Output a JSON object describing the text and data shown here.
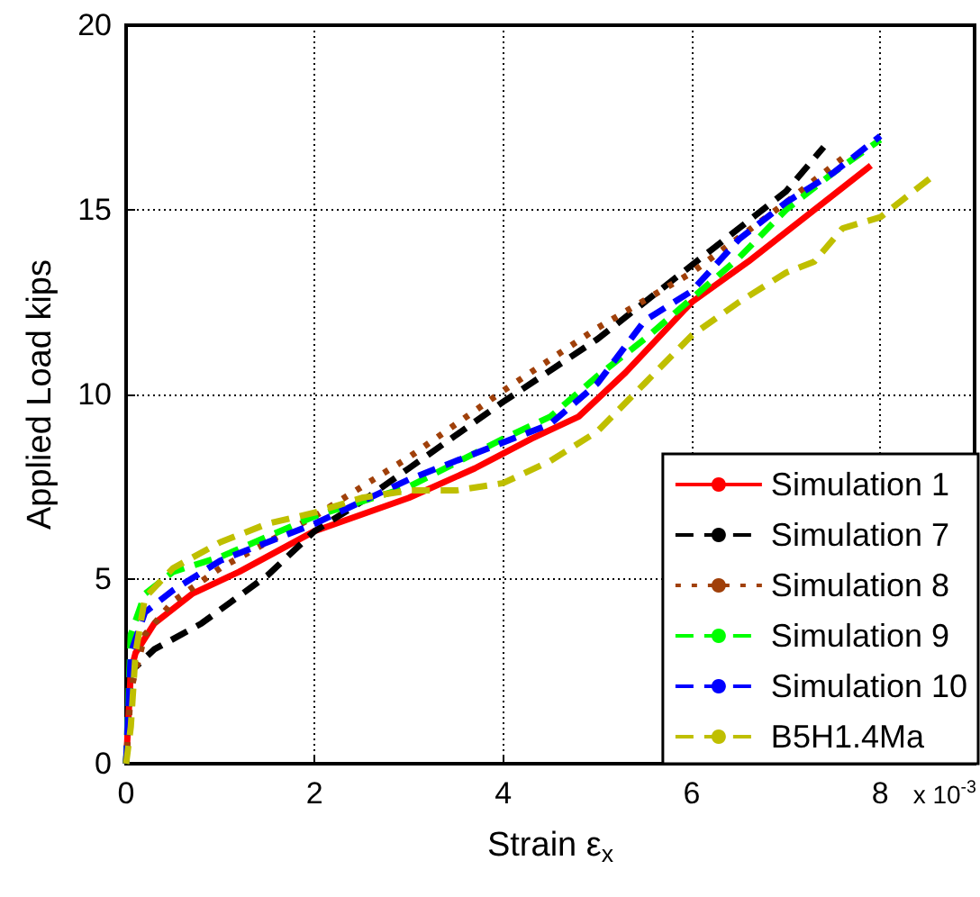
{
  "chart_data": {
    "type": "line",
    "xlabel": "Strain ε$_{x}$",
    "ylabel": "Applied Load kips",
    "annotations": [
      "x 10$^{-3}$"
    ],
    "xlim": [
      0,
      9
    ],
    "xticks": [
      0,
      2,
      4,
      6,
      8
    ],
    "ylim": [
      0,
      20
    ],
    "yticks": [
      0,
      5,
      10,
      15,
      20
    ],
    "grid": true,
    "legend": "bottom right",
    "marker": "none",
    "series": [
      {
        "name": "Simulation 1",
        "color": "#ff0000",
        "line_style": "solid",
        "x": [
          0,
          0.05,
          0.1,
          0.3,
          0.7,
          1.2,
          2,
          3,
          3.7,
          4.3,
          4.8,
          5.3,
          6,
          6.6,
          7.3,
          7.9
        ],
        "values": [
          0,
          2.5,
          3,
          3.8,
          4.6,
          5.2,
          6.3,
          7.2,
          8,
          8.8,
          9.4,
          10.6,
          12.5,
          13.6,
          15,
          16.2
        ]
      },
      {
        "name": "Simulation 7",
        "color": "#000000",
        "line_style": "dashed",
        "x": [
          0,
          0.05,
          0.3,
          0.8,
          1.5,
          2,
          2.5,
          3,
          4,
          5,
          6,
          7,
          7.4
        ],
        "values": [
          0,
          2.5,
          3.1,
          3.8,
          5.1,
          6.3,
          7.1,
          8,
          9.8,
          11.5,
          13.5,
          15.5,
          16.7
        ]
      },
      {
        "name": "Simulation 8",
        "color": "#a0400a",
        "line_style": "dotted",
        "x": [
          0,
          0.05,
          0.2,
          0.5,
          1,
          1.5,
          2,
          3,
          4,
          5,
          6,
          7,
          7.6
        ],
        "values": [
          0,
          2,
          3.5,
          4.4,
          5.3,
          6,
          6.7,
          8.3,
          10.1,
          11.8,
          13.3,
          15.2,
          16.4
        ]
      },
      {
        "name": "Simulation 9",
        "color": "#00ff00",
        "line_style": "dashed",
        "x": [
          0,
          0.05,
          0.2,
          0.5,
          1,
          2,
          3,
          4,
          4.5,
          5,
          5.5,
          6,
          6.5,
          7,
          7.5,
          8
        ],
        "values": [
          0,
          3.5,
          4.6,
          5.2,
          5.6,
          6.7,
          7.5,
          8.8,
          9.4,
          10.5,
          11.5,
          12.6,
          13.7,
          15,
          16,
          16.9
        ]
      },
      {
        "name": "Simulation 10",
        "color": "#0000ff",
        "line_style": "dashed",
        "x": [
          0,
          0.05,
          0.2,
          0.5,
          1,
          2,
          3,
          4,
          4.5,
          5,
          5.5,
          6,
          6.5,
          7,
          7.5,
          8
        ],
        "values": [
          0,
          3,
          4.1,
          4.7,
          5.5,
          6.5,
          7.7,
          8.7,
          9.2,
          10.3,
          12,
          12.8,
          14.2,
          15.2,
          16,
          17
        ]
      },
      {
        "name": "B5H1.4Ma",
        "color": "#bfbf00",
        "line_style": "dashed",
        "x": [
          0,
          0.05,
          0.1,
          0.2,
          0.5,
          1,
          1.5,
          2,
          2.5,
          3,
          3.5,
          4,
          4.5,
          5,
          5.5,
          6,
          6.5,
          7,
          7.3,
          7.6,
          8,
          8.6
        ],
        "values": [
          0,
          1,
          3,
          4.5,
          5.3,
          6,
          6.5,
          6.8,
          7.2,
          7.4,
          7.4,
          7.6,
          8.2,
          9,
          10.3,
          11.6,
          12.5,
          13.3,
          13.6,
          14.5,
          14.8,
          16
        ]
      }
    ]
  }
}
